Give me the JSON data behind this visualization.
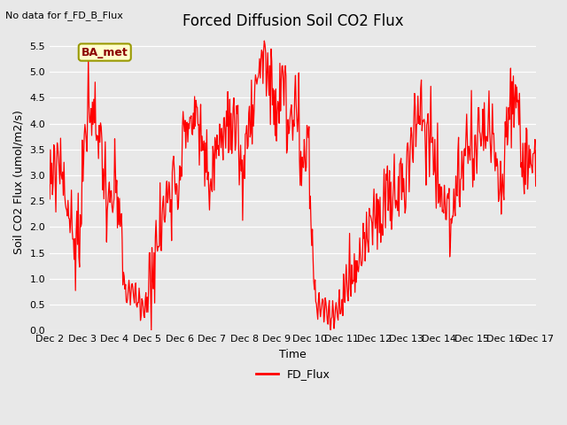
{
  "title": "Forced Diffusion Soil CO2 Flux",
  "xlabel": "Time",
  "ylabel": "Soil CO2 Flux (umol/m2/s)",
  "top_left_text": "No data for f_FD_B_Flux",
  "legend_label": "FD_Flux",
  "line_color": "red",
  "background_color": "#e8e8e8",
  "plot_bg_color": "#e8e8e8",
  "grid_color": "#ffffff",
  "ylim": [
    0.0,
    5.75
  ],
  "xlim": [
    0,
    15
  ],
  "yticks": [
    0.0,
    0.5,
    1.0,
    1.5,
    2.0,
    2.5,
    3.0,
    3.5,
    4.0,
    4.5,
    5.0,
    5.5
  ],
  "xtick_labels": [
    "Dec 2",
    "Dec 3",
    "Dec 4",
    "Dec 5",
    "Dec 6",
    "Dec 7",
    "Dec 8",
    "Dec 9",
    "Dec 10",
    "Dec 11",
    "Dec 12",
    "Dec 13",
    "Dec 14",
    "Dec 15",
    "Dec 16",
    "Dec 17"
  ],
  "box_text": "BA_met",
  "box_facecolor": "#ffffcc",
  "box_edgecolor": "#999900",
  "title_fontsize": 12,
  "label_fontsize": 9,
  "tick_fontsize": 8,
  "linewidth": 0.9
}
